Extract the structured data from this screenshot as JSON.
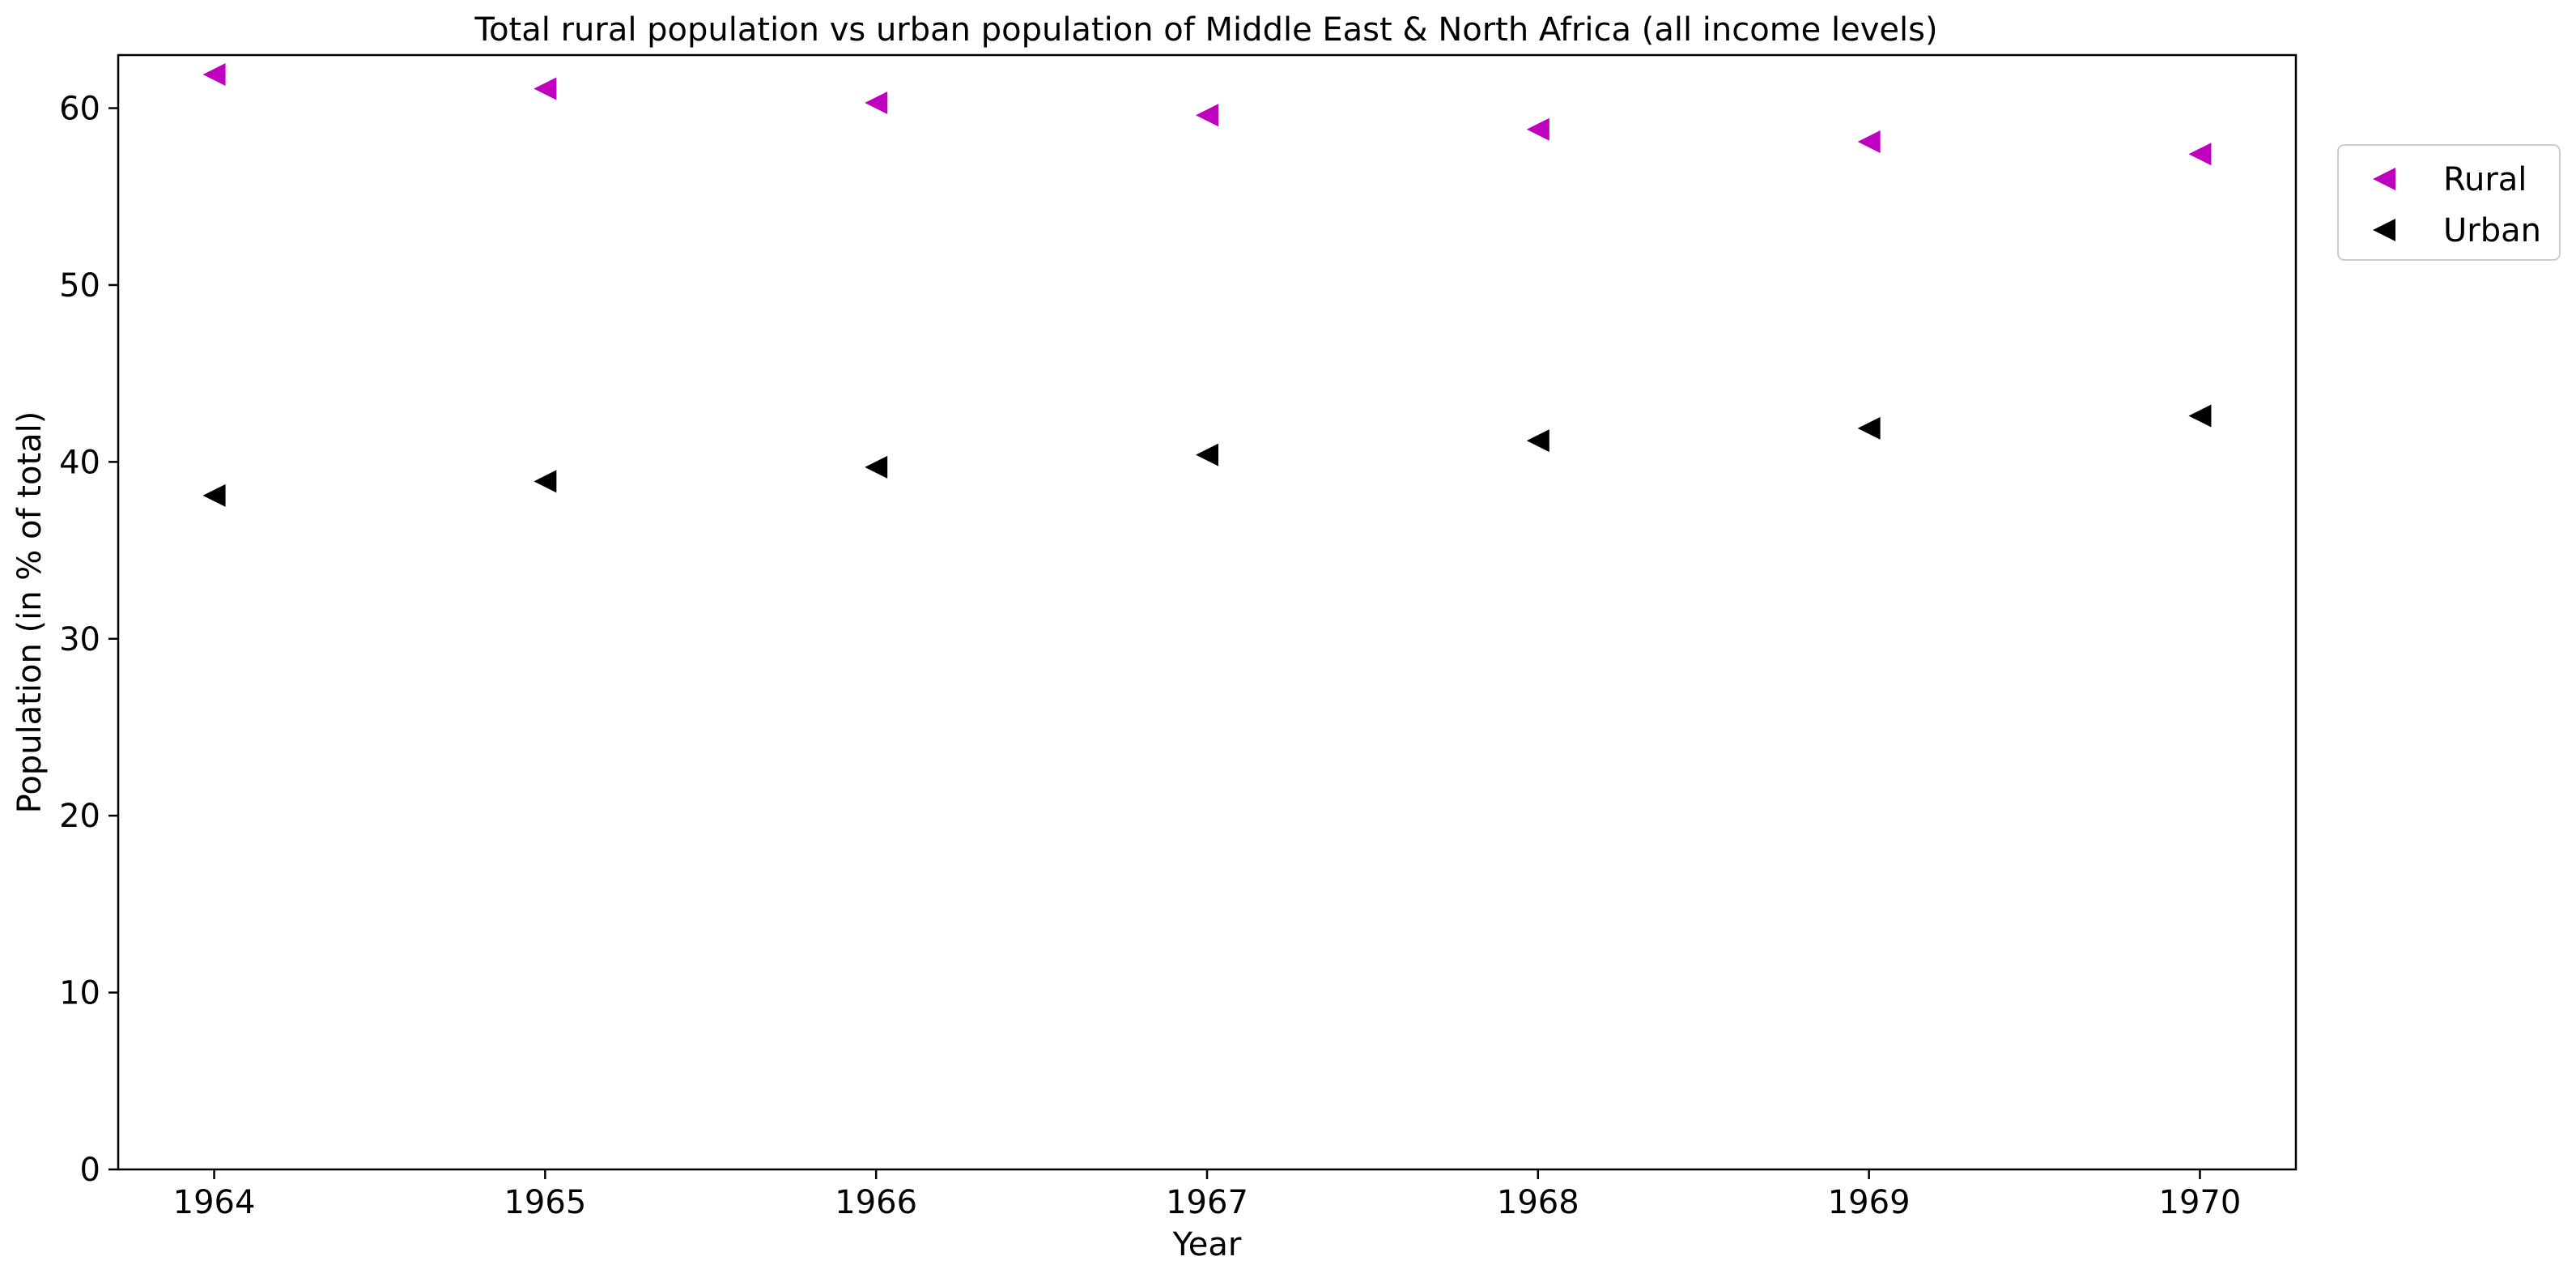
{
  "chart_data": {
    "type": "scatter",
    "title": "Total rural population vs urban population of Middle East & North Africa (all income levels)",
    "xlabel": "Year",
    "ylabel": "Population (in % of total)",
    "x": [
      1964,
      1965,
      1966,
      1967,
      1968,
      1969,
      1970
    ],
    "xticks": [
      "1964",
      "1965",
      "1966",
      "1967",
      "1968",
      "1969",
      "1970"
    ],
    "xlim": [
      1963.71,
      1970.29
    ],
    "yticks": [
      "0",
      "10",
      "20",
      "30",
      "40",
      "50",
      "60"
    ],
    "ylim": [
      0,
      63
    ],
    "grid": false,
    "legend_position": "top-right outside",
    "marker": "triangle-left",
    "series": [
      {
        "name": "Rural",
        "color": "#bf00bf",
        "values": [
          61.9,
          61.1,
          60.3,
          59.6,
          58.8,
          58.1,
          57.4
        ]
      },
      {
        "name": "Urban",
        "color": "#000000",
        "values": [
          38.1,
          38.9,
          39.7,
          40.4,
          41.2,
          41.9,
          42.6
        ]
      }
    ]
  }
}
